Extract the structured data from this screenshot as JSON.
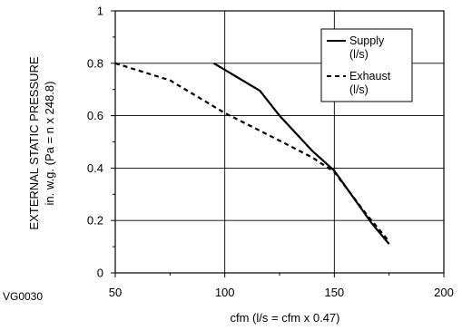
{
  "chart_data": {
    "type": "line",
    "title": "",
    "xlabel": "cfm (l/s = cfm x 0.47)",
    "ylabel_line1": "EXTERNAL STATIC PRESSURE",
    "ylabel_line2": "in. w.g. (Pa = n x 248.8)",
    "xlim": [
      50,
      200
    ],
    "ylim": [
      0,
      1
    ],
    "x_ticks": [
      50,
      100,
      150,
      200
    ],
    "x_minor_step": 25,
    "y_ticks": [
      0,
      0.2,
      0.4,
      0.6,
      0.8,
      1
    ],
    "y_minor_step": 0.1,
    "y_tick_labels": [
      "0",
      "0.2",
      "0.4",
      "0.6",
      "0.8",
      "1"
    ],
    "grid": true,
    "legend_position": "top-right",
    "series": [
      {
        "name": "Supply (l/s)",
        "legend_line1": "Supply",
        "legend_line2": "(l/s)",
        "style": "solid",
        "color": "#000000",
        "x": [
          95,
          116,
          125,
          140,
          150,
          167,
          175
        ],
        "y": [
          0.8,
          0.695,
          0.6,
          0.465,
          0.39,
          0.19,
          0.11
        ]
      },
      {
        "name": "Exhaust (l/s)",
        "legend_line1": "Exhaust",
        "legend_line2": "(l/s)",
        "style": "dashed",
        "color": "#000000",
        "x": [
          50,
          75,
          100,
          125,
          140,
          150,
          165,
          175
        ],
        "y": [
          0.8,
          0.735,
          0.61,
          0.505,
          0.44,
          0.385,
          0.22,
          0.12
        ]
      }
    ],
    "figure_code": "VG0030"
  }
}
